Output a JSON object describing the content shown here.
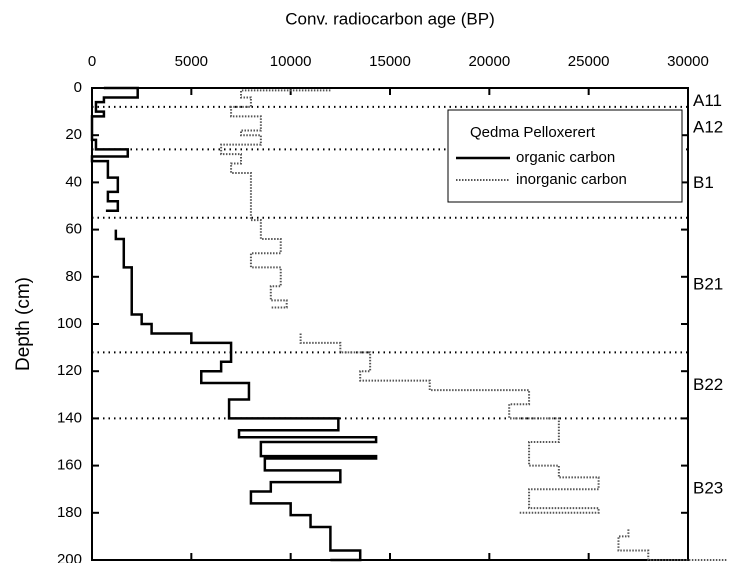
{
  "chart_data": {
    "type": "step-line",
    "xlabel": "Conv. radiocarbon age (BP)",
    "ylabel": "Depth (cm)",
    "xlim": [
      0,
      30000
    ],
    "xticks": [
      0,
      5000,
      10000,
      15000,
      20000,
      25000,
      30000
    ],
    "ylim": [
      0,
      200
    ],
    "yticks": [
      0,
      20,
      40,
      60,
      80,
      100,
      120,
      140,
      160,
      180,
      200
    ],
    "y_inverted": true,
    "legend_title": "Qedma Pelloxerert",
    "horizons": [
      {
        "name": "A11",
        "top": 0,
        "bottom": 8
      },
      {
        "name": "A12",
        "top": 8,
        "bottom": 26
      },
      {
        "name": "B1",
        "top": 26,
        "bottom": 55
      },
      {
        "name": "B21",
        "top": 55,
        "bottom": 112
      },
      {
        "name": "B22",
        "top": 112,
        "bottom": 140
      },
      {
        "name": "B23",
        "top": 140,
        "bottom": 200
      }
    ],
    "series": [
      {
        "name": "organic carbon",
        "color": "#000000",
        "style": "solid",
        "x": [
          600,
          2300,
          2300,
          600,
          600,
          200,
          200,
          600,
          600,
          0,
          0,
          200,
          200,
          1800,
          1800,
          0,
          0,
          800,
          800,
          1300,
          1300,
          800,
          800,
          1300,
          1300,
          700,
          null,
          1200,
          1200,
          1600,
          1600,
          2000,
          2000,
          2500,
          2500,
          3000,
          3000,
          5000,
          5000,
          7000,
          7000,
          6500,
          6500,
          5500,
          5500,
          7900,
          7900,
          6900,
          6900,
          12400,
          12400,
          7400,
          7400,
          14300,
          14300,
          8500,
          8500,
          14300,
          14300,
          8700,
          8700,
          12500,
          12500,
          9000,
          9000,
          8000,
          8000,
          10000,
          10000,
          11000,
          11000,
          12000,
          12000,
          13500,
          13500,
          12000
        ],
        "y": [
          0,
          0,
          4,
          4,
          6,
          6,
          10,
          10,
          12,
          12,
          22,
          22,
          26,
          26,
          29,
          29,
          31,
          31,
          38,
          38,
          44,
          44,
          48,
          48,
          52,
          52,
          null,
          60,
          64,
          64,
          76,
          76,
          96,
          96,
          100,
          100,
          104,
          104,
          108,
          108,
          116,
          116,
          120,
          120,
          125,
          125,
          132,
          132,
          140,
          140,
          145,
          145,
          148,
          148,
          150,
          150,
          156,
          156,
          157,
          157,
          162,
          162,
          167,
          167,
          171,
          171,
          176,
          176,
          181,
          181,
          186,
          186,
          196,
          196,
          200,
          200
        ]
      },
      {
        "name": "inorganic carbon",
        "color": "#555555",
        "style": "dotted",
        "x": [
          12000,
          7500,
          7500,
          8000,
          8000,
          7000,
          7000,
          8500,
          8500,
          7500,
          7500,
          8500,
          8500,
          6500,
          6500,
          7500,
          7500,
          7000,
          7000,
          8000,
          8000,
          8500,
          8500,
          9500,
          9500,
          8000,
          8000,
          9500,
          9500,
          9000,
          9000,
          9800,
          9800,
          9000,
          null,
          10500,
          10500,
          12500,
          12500,
          14000,
          14000,
          13500,
          13500,
          17000,
          17000,
          22000,
          22000,
          21000,
          21000,
          23500,
          23500,
          22000,
          22000,
          23500,
          23500,
          25500,
          25500,
          22000,
          22000,
          25500,
          25500,
          21500,
          null,
          27000,
          27000,
          26500,
          26500,
          28000,
          28000,
          32000
        ],
        "y": [
          1,
          1,
          4,
          4,
          8,
          8,
          12,
          12,
          18,
          18,
          20,
          20,
          24,
          24,
          28,
          28,
          32,
          32,
          36,
          36,
          56,
          56,
          64,
          64,
          70,
          70,
          76,
          76,
          84,
          84,
          90,
          90,
          93,
          93,
          null,
          104,
          108,
          108,
          112,
          112,
          120,
          120,
          124,
          124,
          128,
          128,
          134,
          134,
          140,
          140,
          150,
          150,
          160,
          160,
          165,
          165,
          170,
          170,
          178,
          178,
          180,
          180,
          null,
          187,
          190,
          190,
          196,
          196,
          200,
          200
        ]
      }
    ]
  }
}
